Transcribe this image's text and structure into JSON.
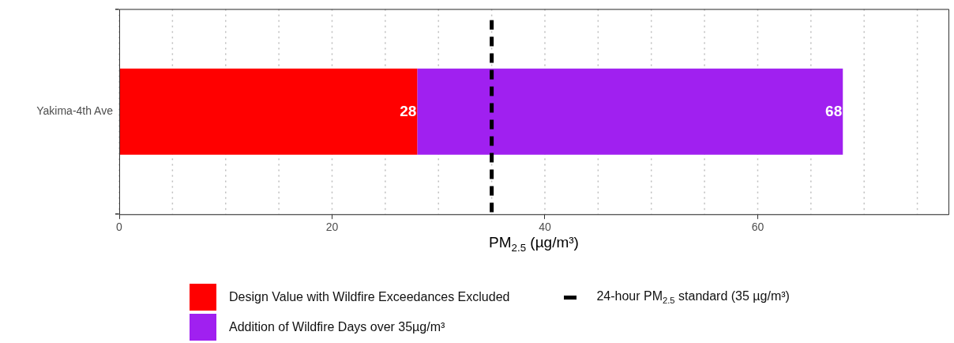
{
  "chart_data": {
    "type": "bar",
    "orientation": "horizontal",
    "stacked": true,
    "categories": [
      "Yakima-4th Ave"
    ],
    "series": [
      {
        "name": "Design Value with Wildfire Exceedances Excluded",
        "color": "#ff0000",
        "values": [
          28
        ],
        "value_labels": [
          "28"
        ]
      },
      {
        "name": "Addition of Wildfire Days over 35µg/m³",
        "color": "#a020f0",
        "values": [
          40
        ]
      }
    ],
    "totals": [
      "68"
    ],
    "xlabel": "PM$_{2.5}$ (µg/m³)",
    "xlim": [
      0,
      78
    ],
    "xticks": [
      0,
      {
        "value": 5,
        "label": null
      },
      {
        "value": 10,
        "label": null
      },
      {
        "value": 15,
        "label": null
      },
      20,
      {
        "value": 25,
        "label": null
      },
      {
        "value": 30,
        "label": null
      },
      {
        "value": 35,
        "label": null
      },
      40,
      {
        "value": 45,
        "label": null
      },
      {
        "value": 50,
        "label": null
      },
      {
        "value": 55,
        "label": null
      },
      60,
      {
        "value": 65,
        "label": null
      },
      {
        "value": 70,
        "label": null
      },
      {
        "value": 75,
        "label": null
      }
    ],
    "ref_lines": [
      {
        "axis": "x",
        "value": 35,
        "label": "24-hour PM$_{2.5}$ standard (35 µg/m³)",
        "color": "#000000",
        "line_style": "dashed"
      }
    ],
    "grid": true,
    "legend": "bottom"
  }
}
